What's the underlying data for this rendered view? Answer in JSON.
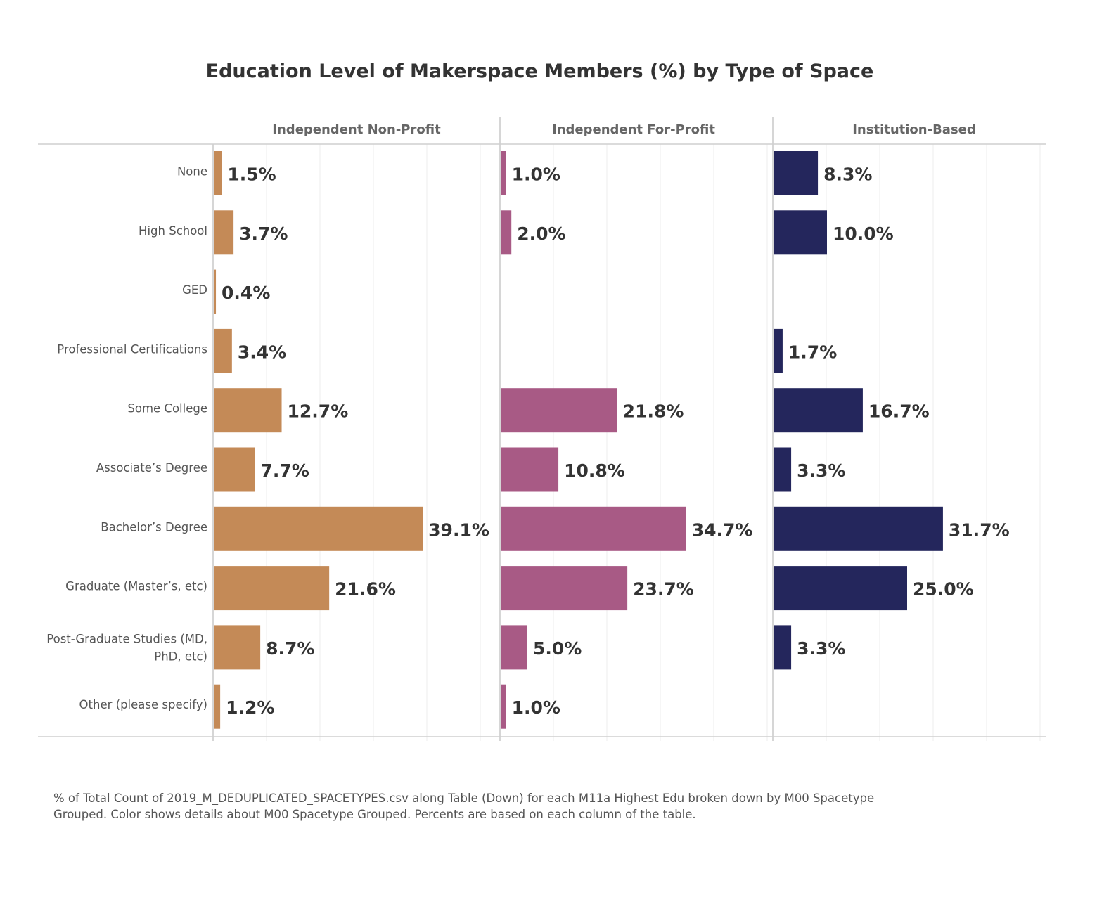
{
  "chart_data": {
    "type": "bar",
    "orientation": "horizontal",
    "title": "Education Level of Makerspace Members (%) by Type of Space",
    "categories": [
      "None",
      "High School",
      "GED",
      "Professional Certifications",
      "Some College",
      "Associate’s Degree",
      "Bachelor’s Degree",
      "Graduate (Master’s, etc)",
      "Post-Graduate Studies (MD, PhD, etc)",
      "Other (please specify)"
    ],
    "series": [
      {
        "name": "Independent Non-Profit",
        "color": "#c48a57",
        "values": [
          1.5,
          3.7,
          0.4,
          3.4,
          12.7,
          7.7,
          39.1,
          21.6,
          8.7,
          1.2
        ],
        "labels": [
          "1.5%",
          "3.7%",
          "0.4%",
          "3.4%",
          "12.7%",
          "7.7%",
          "39.1%",
          "21.6%",
          "8.7%",
          "1.2%"
        ]
      },
      {
        "name": "Independent For-Profit",
        "color": "#a85a85",
        "values": [
          1.0,
          2.0,
          null,
          null,
          21.8,
          10.8,
          34.7,
          23.7,
          5.0,
          1.0
        ],
        "labels": [
          "1.0%",
          "2.0%",
          "",
          "",
          "21.8%",
          "10.8%",
          "34.7%",
          "23.7%",
          "5.0%",
          "1.0%"
        ]
      },
      {
        "name": "Institution-Based",
        "color": "#24265c",
        "values": [
          8.3,
          10.0,
          null,
          1.7,
          16.7,
          3.3,
          31.7,
          25.0,
          3.3,
          null
        ],
        "labels": [
          "8.3%",
          "10.0%",
          "",
          "1.7%",
          "16.7%",
          "3.3%",
          "31.7%",
          "25.0%",
          "3.3%",
          ""
        ]
      }
    ],
    "xlim": [
      0,
      50
    ],
    "grid": true,
    "footnote": [
      "% of Total Count of 2019_M_DEDUPLICATED_SPACETYPES.csv along Table (Down) for each M11a Highest Edu broken down by M00 Spacetype",
      "Grouped.  Color shows details about M00 Spacetype Grouped. Percents are based on each column of the table."
    ]
  }
}
